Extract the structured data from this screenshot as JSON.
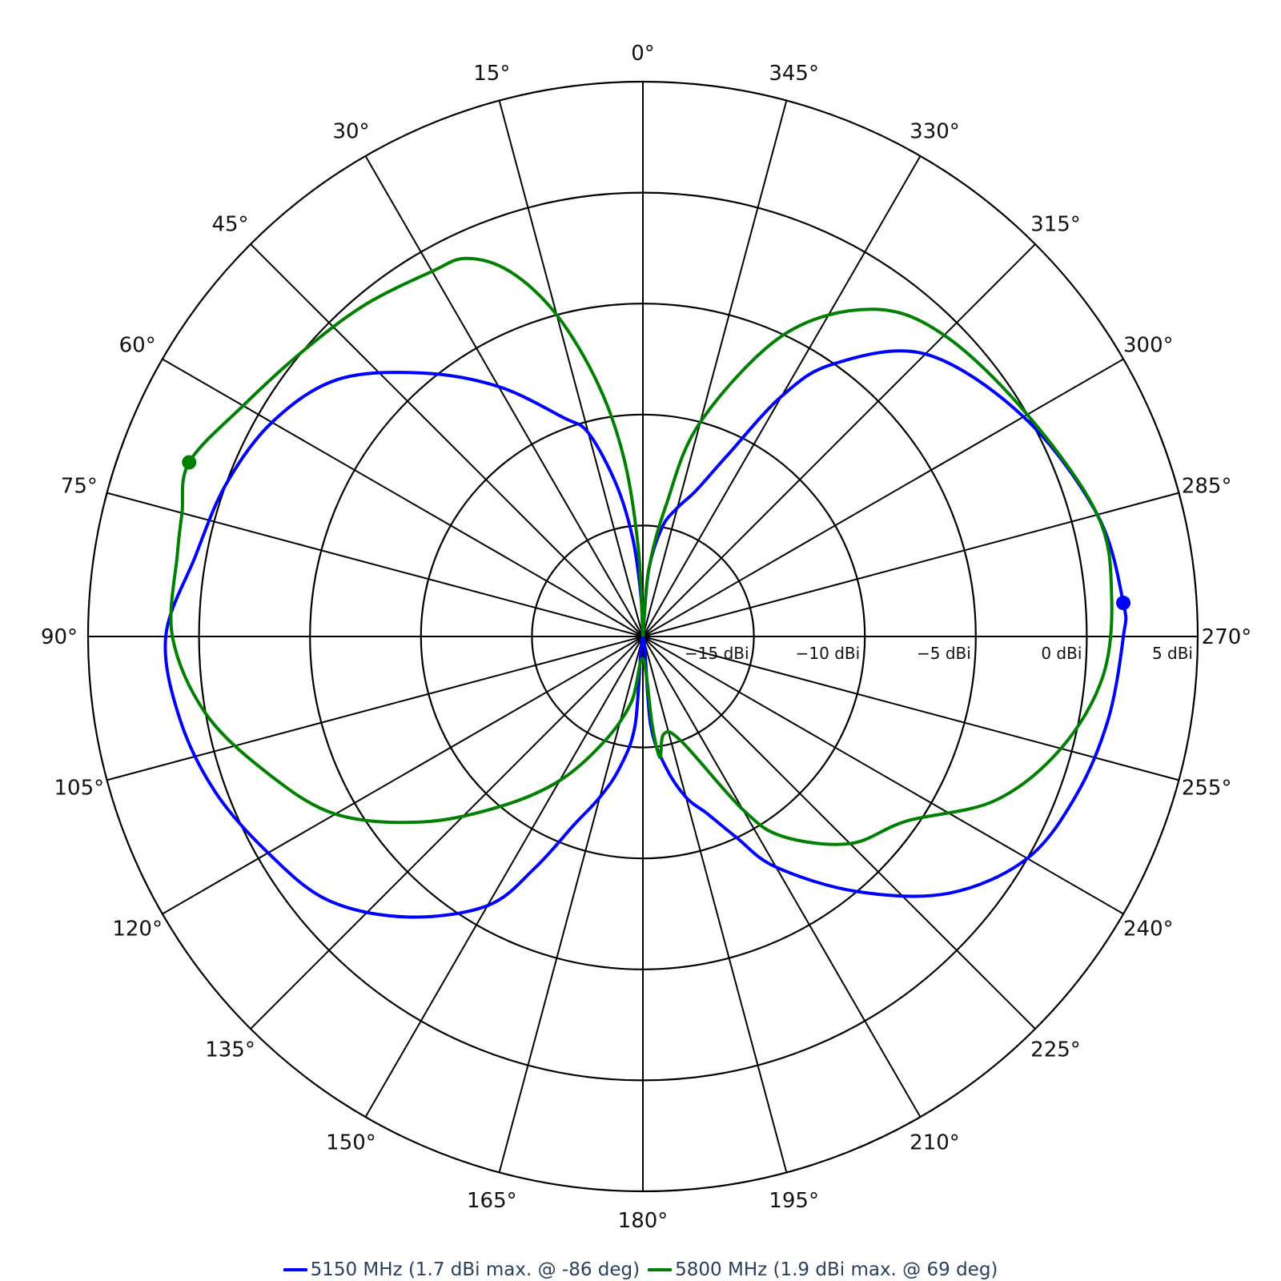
{
  "chart_data": {
    "type": "polar-line",
    "angular_axis": {
      "direction": "counterclockwise",
      "rotation": "0 at top",
      "tick_values": [
        0,
        15,
        30,
        45,
        60,
        75,
        90,
        105,
        120,
        135,
        150,
        165,
        180,
        195,
        210,
        225,
        240,
        255,
        270,
        285,
        300,
        315,
        330,
        345
      ],
      "tick_labels": [
        "0°",
        "15°",
        "30°",
        "45°",
        "60°",
        "75°",
        "90°",
        "105°",
        "120°",
        "135°",
        "150°",
        "165°",
        "180°",
        "195°",
        "210°",
        "225°",
        "240°",
        "255°",
        "270°",
        "285°",
        "300°",
        "315°",
        "330°",
        "345°"
      ]
    },
    "radial_axis": {
      "range": [
        -20,
        5
      ],
      "unit": "dBi",
      "tick_values": [
        -15,
        -10,
        -5,
        0,
        5
      ],
      "tick_labels": [
        "−15 dBi",
        "−10 dBi",
        "−5 dBi",
        "0 dBi",
        "5 dBi"
      ],
      "label_angle": 270
    },
    "grid": true,
    "legend_position": "bottom-center",
    "series": [
      {
        "name": "5150 MHz (1.7 dBi max. @ -86 deg)",
        "color": "#0000ff",
        "marker": {
          "theta": 274,
          "r": 1.7
        },
        "points": [
          {
            "theta": 0,
            "r": -20
          },
          {
            "theta": 3,
            "r": -18
          },
          {
            "theta": 6,
            "r": -15.5
          },
          {
            "theta": 10,
            "r": -13
          },
          {
            "theta": 15,
            "r": -10.5
          },
          {
            "theta": 20,
            "r": -9.5
          },
          {
            "theta": 30,
            "r": -7
          },
          {
            "theta": 40,
            "r": -4.5
          },
          {
            "theta": 50,
            "r": -2
          },
          {
            "theta": 60,
            "r": -0.7
          },
          {
            "theta": 70,
            "r": 0
          },
          {
            "theta": 80,
            "r": 0.5
          },
          {
            "theta": 90,
            "r": 1.5
          },
          {
            "theta": 100,
            "r": 1.2
          },
          {
            "theta": 110,
            "r": 0.5
          },
          {
            "theta": 120,
            "r": -0.5
          },
          {
            "theta": 130,
            "r": -1.5
          },
          {
            "theta": 140,
            "r": -3.5
          },
          {
            "theta": 150,
            "r": -6
          },
          {
            "theta": 155,
            "r": -8.5
          },
          {
            "theta": 160,
            "r": -11
          },
          {
            "theta": 165,
            "r": -12.5
          },
          {
            "theta": 170,
            "r": -14
          },
          {
            "theta": 175,
            "r": -16
          },
          {
            "theta": 180,
            "r": -20
          },
          {
            "theta": 185,
            "r": -16
          },
          {
            "theta": 190,
            "r": -14
          },
          {
            "theta": 195,
            "r": -12.5
          },
          {
            "theta": 200,
            "r": -11.5
          },
          {
            "theta": 205,
            "r": -10
          },
          {
            "theta": 210,
            "r": -8
          },
          {
            "theta": 220,
            "r": -5
          },
          {
            "theta": 230,
            "r": -2
          },
          {
            "theta": 240,
            "r": 0
          },
          {
            "theta": 250,
            "r": 0.8
          },
          {
            "theta": 260,
            "r": 1.3
          },
          {
            "theta": 270,
            "r": 1.65
          },
          {
            "theta": 274,
            "r": 1.7
          },
          {
            "theta": 285,
            "r": 1.2
          },
          {
            "theta": 300,
            "r": -0.2
          },
          {
            "theta": 315,
            "r": -2
          },
          {
            "theta": 325,
            "r": -5
          },
          {
            "theta": 330,
            "r": -7.5
          },
          {
            "theta": 335,
            "r": -11
          },
          {
            "theta": 340,
            "r": -13
          },
          {
            "theta": 345,
            "r": -14
          },
          {
            "theta": 350,
            "r": -15
          },
          {
            "theta": 355,
            "r": -17
          },
          {
            "theta": 360,
            "r": -20
          }
        ]
      },
      {
        "name": "5800 MHz (1.9 dBi max. @ 69 deg)",
        "color": "#008000",
        "marker": {
          "theta": 69,
          "r": 1.9
        },
        "points": [
          {
            "theta": 0,
            "r": -20
          },
          {
            "theta": 3,
            "r": -16
          },
          {
            "theta": 6,
            "r": -12
          },
          {
            "theta": 10,
            "r": -8.5
          },
          {
            "theta": 15,
            "r": -5
          },
          {
            "theta": 20,
            "r": -2.5
          },
          {
            "theta": 25,
            "r": -1.2
          },
          {
            "theta": 30,
            "r": -1
          },
          {
            "theta": 40,
            "r": -0.5
          },
          {
            "theta": 50,
            "r": 0
          },
          {
            "theta": 60,
            "r": 0.8
          },
          {
            "theta": 69,
            "r": 1.9
          },
          {
            "theta": 75,
            "r": 1.5
          },
          {
            "theta": 80,
            "r": 1.3
          },
          {
            "theta": 90,
            "r": 1.2
          },
          {
            "theta": 100,
            "r": 0
          },
          {
            "theta": 110,
            "r": -2
          },
          {
            "theta": 120,
            "r": -4
          },
          {
            "theta": 130,
            "r": -7
          },
          {
            "theta": 140,
            "r": -10
          },
          {
            "theta": 150,
            "r": -12.5
          },
          {
            "theta": 160,
            "r": -15
          },
          {
            "theta": 170,
            "r": -17
          },
          {
            "theta": 180,
            "r": -19
          },
          {
            "theta": 186,
            "r": -16
          },
          {
            "theta": 188,
            "r": -14.5
          },
          {
            "theta": 192,
            "r": -15.5
          },
          {
            "theta": 200,
            "r": -15
          },
          {
            "theta": 210,
            "r": -11
          },
          {
            "theta": 215,
            "r": -9
          },
          {
            "theta": 225,
            "r": -6.8
          },
          {
            "theta": 235,
            "r": -5.5
          },
          {
            "theta": 245,
            "r": -2.5
          },
          {
            "theta": 255,
            "r": -0.5
          },
          {
            "theta": 265,
            "r": 0.8
          },
          {
            "theta": 275,
            "r": 1.2
          },
          {
            "theta": 285,
            "r": 1.2
          },
          {
            "theta": 300,
            "r": 0
          },
          {
            "theta": 315,
            "r": -0.8
          },
          {
            "theta": 325,
            "r": -2
          },
          {
            "theta": 335,
            "r": -5
          },
          {
            "theta": 345,
            "r": -10
          },
          {
            "theta": 350,
            "r": -14
          },
          {
            "theta": 355,
            "r": -17
          },
          {
            "theta": 360,
            "r": -20
          }
        ]
      }
    ]
  }
}
